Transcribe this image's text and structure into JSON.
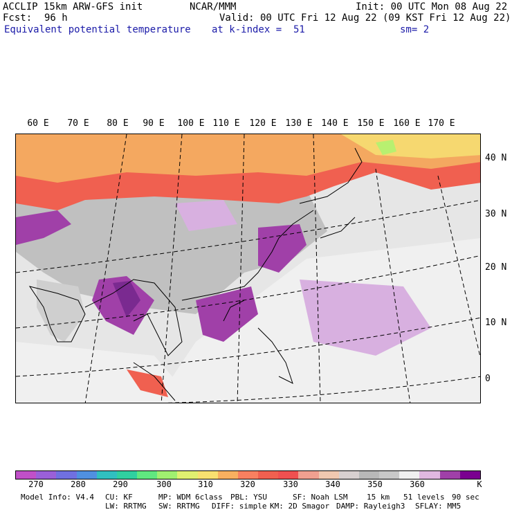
{
  "header": {
    "model": "ACCLIP 15km ARW-GFS init",
    "org": "NCAR/MMM",
    "init": "Init: 00 UTC Mon 08 Aug 22",
    "fcst_label": "Fcst:",
    "fcst_value": "96 h",
    "valid": "Valid: 00 UTC Fri 12 Aug 22 (09 KST Fri 12 Aug 22)",
    "field": "Equivalent potential temperature",
    "level": "at k-index =  51",
    "smooth": "sm= 2"
  },
  "map": {
    "lon_labels": [
      "60 E",
      "70 E",
      "80 E",
      "90 E",
      "100 E",
      "110 E",
      "120 E",
      "130 E",
      "140 E",
      "150 E",
      "160 E",
      "170 E"
    ],
    "lat_labels": [
      "40 N",
      "30 N",
      "20 N",
      "10 N",
      "0"
    ],
    "colors": {
      "background": "#e4e4e4",
      "land_grey": "#bcbcbc",
      "ocean_light": "#f0f0f0",
      "warm_orange": "#f4a860",
      "warm_red": "#f06050",
      "warm_yellow": "#f6d870",
      "light_purple": "#d8b0e0",
      "mid_purple": "#a040a8",
      "dark_purple": "#7a2a90"
    }
  },
  "colorbar": {
    "colors": [
      "#c050c8",
      "#9a60d8",
      "#7070e0",
      "#5090e0",
      "#30c0c0",
      "#30d0a0",
      "#60e880",
      "#a0f070",
      "#e0f070",
      "#f8e070",
      "#f8b060",
      "#f88060",
      "#f06050",
      "#f05050",
      "#f0a090",
      "#f0c8b0",
      "#d8d0d0",
      "#b8b8b8",
      "#c8c8c8",
      "#f0f0f0",
      "#e0b8e0",
      "#a040a8",
      "#7a0090"
    ],
    "ticks": [
      "270",
      "280",
      "290",
      "300",
      "310",
      "320",
      "330",
      "340",
      "350",
      "360"
    ],
    "unit": "K"
  },
  "model_info": {
    "line1": [
      "Model Info: V4.4",
      "CU: KF",
      "MP: WDM 6class",
      "PBL: YSU",
      "SF: Noah LSM",
      "15 km",
      "51 levels",
      "90 sec"
    ],
    "line2": [
      "LW: RRTMG",
      "SW: RRTMG",
      "DIFF: simple",
      "KM: 2D Smagor",
      "DAMP: Rayleigh3",
      "SFLAY: MM5"
    ]
  }
}
